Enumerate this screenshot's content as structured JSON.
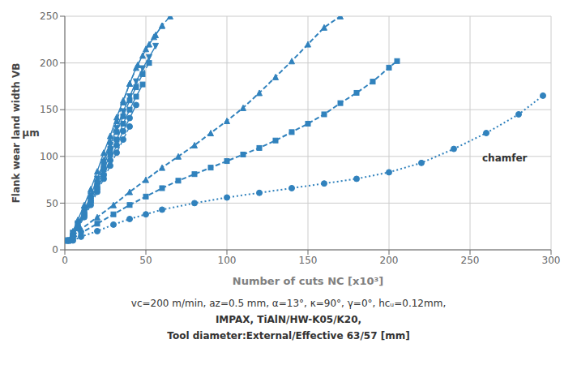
{
  "chart_data": {
    "type": "line",
    "x_label": "Number of cuts NC [x10³]",
    "y_label": [
      "Flank wear land width VB",
      "μm"
    ],
    "subtitle": [
      "vᴄ=200 m/min, aᴢ=0.5 mm, α=13°, κ=90°, γ=0°, hᴄᵤ=0.12mm,",
      "IMPAX, TiAlN/HW-K05/K20,",
      "Tool diameter:External/Effective 63/57 [mm]"
    ],
    "annotations": [
      {
        "text": "chamfer",
        "x": 255,
        "y": 98
      }
    ],
    "xlim": [
      0,
      300
    ],
    "xticks": [
      0,
      50,
      100,
      150,
      200,
      250,
      300
    ],
    "ylim": [
      0,
      250
    ],
    "yticks": [
      0,
      50,
      100,
      150,
      200,
      250
    ],
    "grid": true,
    "series": [
      {
        "x": [
          2,
          5,
          8,
          12,
          16,
          20,
          24,
          28,
          32,
          36,
          40,
          45,
          50,
          55,
          60,
          65
        ],
        "values": [
          10,
          18,
          28,
          42,
          58,
          76,
          96,
          116,
          138,
          158,
          178,
          198,
          215,
          228,
          240,
          250
        ],
        "marker": "triangle",
        "line_style": "dashed"
      },
      {
        "x": [
          2,
          5,
          8,
          12,
          16,
          20,
          24,
          28,
          32,
          36,
          40,
          44,
          48,
          52,
          56,
          60
        ],
        "values": [
          10,
          20,
          32,
          48,
          65,
          84,
          104,
          122,
          142,
          160,
          178,
          195,
          208,
          220,
          230,
          240
        ],
        "marker": "triangle",
        "line_style": "solid"
      },
      {
        "x": [
          2,
          5,
          8,
          12,
          16,
          20,
          24,
          28,
          32,
          36,
          40,
          44,
          48,
          52,
          56
        ],
        "values": [
          10,
          18,
          28,
          42,
          58,
          76,
          94,
          112,
          130,
          148,
          164,
          180,
          194,
          206,
          218
        ],
        "marker": "triangle_down",
        "line_style": "solid"
      },
      {
        "x": [
          2,
          5,
          8,
          12,
          16,
          20,
          24,
          28,
          32,
          36,
          40,
          44,
          48,
          52
        ],
        "values": [
          10,
          17,
          27,
          40,
          55,
          72,
          90,
          108,
          126,
          143,
          160,
          174,
          188,
          200
        ],
        "marker": "square",
        "line_style": "dashed"
      },
      {
        "x": [
          2,
          5,
          8,
          12,
          16,
          20,
          24,
          28,
          32,
          36,
          40,
          44,
          48
        ],
        "values": [
          10,
          17,
          26,
          39,
          53,
          69,
          86,
          102,
          118,
          135,
          150,
          164,
          177
        ],
        "marker": "square",
        "line_style": "solid"
      },
      {
        "x": [
          2,
          5,
          8,
          12,
          16,
          20,
          24,
          28,
          32,
          36,
          40,
          44
        ],
        "values": [
          10,
          16,
          25,
          37,
          51,
          65,
          80,
          96,
          112,
          127,
          141,
          155
        ],
        "marker": "circle",
        "line_style": "solid"
      },
      {
        "x": [
          2,
          5,
          8,
          12,
          16,
          20,
          24,
          28,
          32,
          36,
          40
        ],
        "values": [
          10,
          15,
          23,
          35,
          48,
          62,
          76,
          90,
          104,
          118,
          132
        ],
        "marker": "circle",
        "line_style": "dashed"
      },
      {
        "x": [
          5,
          10,
          20,
          30,
          40,
          50,
          60,
          70,
          80,
          90,
          100,
          110,
          120,
          130,
          140,
          150,
          160,
          170
        ],
        "values": [
          15,
          22,
          35,
          48,
          62,
          75,
          88,
          100,
          112,
          125,
          138,
          152,
          168,
          185,
          202,
          220,
          238,
          250
        ],
        "marker": "triangle",
        "line_style": "dashed"
      },
      {
        "x": [
          5,
          10,
          20,
          30,
          40,
          50,
          60,
          70,
          80,
          90,
          100,
          110,
          120,
          130,
          140,
          150,
          160,
          170,
          180,
          190,
          200,
          205
        ],
        "values": [
          12,
          18,
          28,
          38,
          48,
          57,
          66,
          74,
          81,
          88,
          95,
          102,
          109,
          117,
          126,
          135,
          145,
          157,
          168,
          180,
          195,
          202
        ],
        "marker": "square",
        "line_style": "dashed"
      },
      {
        "x": [
          5,
          10,
          20,
          30,
          40,
          50,
          60,
          80,
          100,
          120,
          140,
          160,
          180,
          200,
          220,
          240,
          260,
          280,
          295
        ],
        "values": [
          10,
          14,
          20,
          27,
          33,
          38,
          43,
          50,
          56,
          61,
          66,
          71,
          76,
          83,
          93,
          108,
          125,
          145,
          165
        ],
        "marker": "circle",
        "line_style": "dotted"
      }
    ]
  }
}
